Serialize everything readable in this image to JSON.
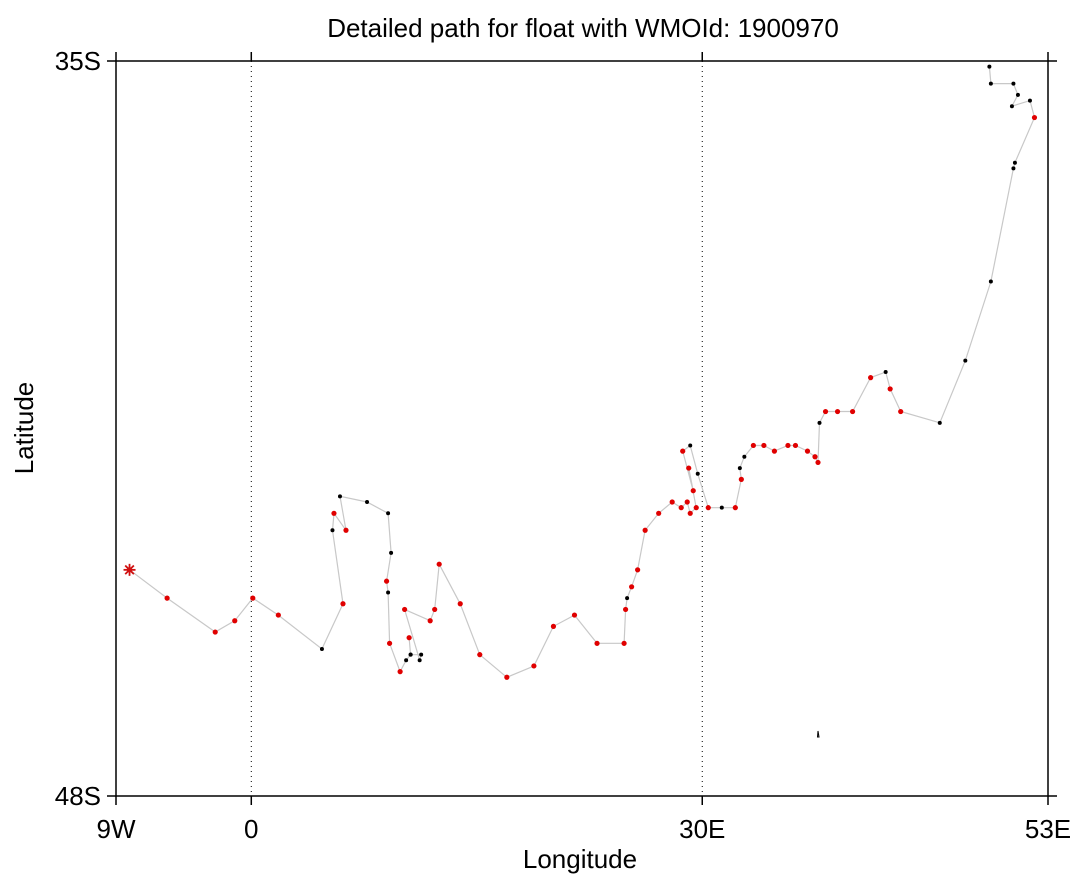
{
  "chart_data": {
    "type": "scatter",
    "title": "Detailed path for float with WMOId: 1900970",
    "xlabel": "Longitude",
    "ylabel": "Latitude",
    "xlim": [
      -9,
      53
    ],
    "ylim": [
      -48,
      -35
    ],
    "x_ticks": [
      {
        "value": -9,
        "label": "9W"
      },
      {
        "value": 0,
        "label": "0"
      },
      {
        "value": 30,
        "label": "30E"
      },
      {
        "value": 53,
        "label": "53E"
      }
    ],
    "y_ticks": [
      {
        "value": -35,
        "label": "35S"
      },
      {
        "value": -48,
        "label": "48S"
      }
    ],
    "vertical_reference_lines": [
      0,
      30
    ],
    "colors": {
      "path": "#c8c8c8",
      "red_points": "#e00000",
      "black_points": "#000000",
      "start_marker": "#d01010"
    },
    "start_marker": {
      "lon": -8.1,
      "lat": -44.0,
      "symbol": "asterisk"
    },
    "track": [
      {
        "lon": -8.1,
        "lat": -44.0,
        "c": "r"
      },
      {
        "lon": -5.6,
        "lat": -44.5,
        "c": "r"
      },
      {
        "lon": -2.4,
        "lat": -45.1,
        "c": "r"
      },
      {
        "lon": -1.1,
        "lat": -44.9,
        "c": "r"
      },
      {
        "lon": 0.1,
        "lat": -44.5,
        "c": "r"
      },
      {
        "lon": 1.8,
        "lat": -44.8,
        "c": "r"
      },
      {
        "lon": 4.7,
        "lat": -45.4,
        "c": "k"
      },
      {
        "lon": 6.1,
        "lat": -44.6,
        "c": "r"
      },
      {
        "lon": 5.4,
        "lat": -43.3,
        "c": "k"
      },
      {
        "lon": 5.5,
        "lat": -43.0,
        "c": "r"
      },
      {
        "lon": 6.3,
        "lat": -43.3,
        "c": "r"
      },
      {
        "lon": 5.9,
        "lat": -42.7,
        "c": "k"
      },
      {
        "lon": 7.7,
        "lat": -42.8,
        "c": "k"
      },
      {
        "lon": 9.1,
        "lat": -43.0,
        "c": "k"
      },
      {
        "lon": 9.3,
        "lat": -43.7,
        "c": "k"
      },
      {
        "lon": 9.0,
        "lat": -44.2,
        "c": "r"
      },
      {
        "lon": 9.1,
        "lat": -44.4,
        "c": "k"
      },
      {
        "lon": 9.2,
        "lat": -45.3,
        "c": "r"
      },
      {
        "lon": 9.9,
        "lat": -45.8,
        "c": "r"
      },
      {
        "lon": 10.3,
        "lat": -45.6,
        "c": "k"
      },
      {
        "lon": 10.6,
        "lat": -45.5,
        "c": "k"
      },
      {
        "lon": 10.5,
        "lat": -45.2,
        "c": "r"
      },
      {
        "lon": 10.6,
        "lat": -45.5,
        "c": "k"
      },
      {
        "lon": 11.3,
        "lat": -45.5,
        "c": "k"
      },
      {
        "lon": 11.2,
        "lat": -45.6,
        "c": "k"
      },
      {
        "lon": 10.2,
        "lat": -44.7,
        "c": "r"
      },
      {
        "lon": 11.9,
        "lat": -44.9,
        "c": "r"
      },
      {
        "lon": 12.2,
        "lat": -44.7,
        "c": "r"
      },
      {
        "lon": 12.5,
        "lat": -43.9,
        "c": "r"
      },
      {
        "lon": 13.9,
        "lat": -44.6,
        "c": "r"
      },
      {
        "lon": 15.2,
        "lat": -45.5,
        "c": "r"
      },
      {
        "lon": 17.0,
        "lat": -45.9,
        "c": "r"
      },
      {
        "lon": 18.8,
        "lat": -45.7,
        "c": "r"
      },
      {
        "lon": 20.1,
        "lat": -45.0,
        "c": "r"
      },
      {
        "lon": 21.5,
        "lat": -44.8,
        "c": "r"
      },
      {
        "lon": 23.0,
        "lat": -45.3,
        "c": "r"
      },
      {
        "lon": 24.8,
        "lat": -45.3,
        "c": "r"
      },
      {
        "lon": 24.9,
        "lat": -44.7,
        "c": "r"
      },
      {
        "lon": 25.0,
        "lat": -44.5,
        "c": "k"
      },
      {
        "lon": 25.3,
        "lat": -44.3,
        "c": "r"
      },
      {
        "lon": 25.7,
        "lat": -44.0,
        "c": "r"
      },
      {
        "lon": 26.2,
        "lat": -43.3,
        "c": "r"
      },
      {
        "lon": 27.1,
        "lat": -43.0,
        "c": "r"
      },
      {
        "lon": 28.0,
        "lat": -42.8,
        "c": "r"
      },
      {
        "lon": 28.6,
        "lat": -42.9,
        "c": "r"
      },
      {
        "lon": 29.0,
        "lat": -42.8,
        "c": "r"
      },
      {
        "lon": 29.2,
        "lat": -43.0,
        "c": "r"
      },
      {
        "lon": 29.6,
        "lat": -42.9,
        "c": "r"
      },
      {
        "lon": 29.1,
        "lat": -42.2,
        "c": "r"
      },
      {
        "lon": 29.4,
        "lat": -42.6,
        "c": "r"
      },
      {
        "lon": 28.7,
        "lat": -41.9,
        "c": "r"
      },
      {
        "lon": 29.2,
        "lat": -41.8,
        "c": "k"
      },
      {
        "lon": 29.7,
        "lat": -42.3,
        "c": "k"
      },
      {
        "lon": 30.4,
        "lat": -42.9,
        "c": "r"
      },
      {
        "lon": 31.3,
        "lat": -42.9,
        "c": "k"
      },
      {
        "lon": 32.2,
        "lat": -42.9,
        "c": "r"
      },
      {
        "lon": 32.6,
        "lat": -42.4,
        "c": "r"
      },
      {
        "lon": 32.5,
        "lat": -42.2,
        "c": "k"
      },
      {
        "lon": 32.8,
        "lat": -42.0,
        "c": "k"
      },
      {
        "lon": 33.4,
        "lat": -41.8,
        "c": "r"
      },
      {
        "lon": 34.1,
        "lat": -41.8,
        "c": "r"
      },
      {
        "lon": 34.8,
        "lat": -41.9,
        "c": "r"
      },
      {
        "lon": 35.7,
        "lat": -41.8,
        "c": "r"
      },
      {
        "lon": 36.2,
        "lat": -41.8,
        "c": "r"
      },
      {
        "lon": 37.0,
        "lat": -41.9,
        "c": "r"
      },
      {
        "lon": 37.5,
        "lat": -42.0,
        "c": "r"
      },
      {
        "lon": 37.7,
        "lat": -42.1,
        "c": "r"
      },
      {
        "lon": 37.8,
        "lat": -41.4,
        "c": "k"
      },
      {
        "lon": 38.2,
        "lat": -41.2,
        "c": "r"
      },
      {
        "lon": 39.0,
        "lat": -41.2,
        "c": "r"
      },
      {
        "lon": 40.0,
        "lat": -41.2,
        "c": "r"
      },
      {
        "lon": 41.2,
        "lat": -40.6,
        "c": "r"
      },
      {
        "lon": 42.2,
        "lat": -40.5,
        "c": "k"
      },
      {
        "lon": 42.5,
        "lat": -40.8,
        "c": "r"
      },
      {
        "lon": 43.2,
        "lat": -41.2,
        "c": "r"
      },
      {
        "lon": 45.8,
        "lat": -41.4,
        "c": "k"
      },
      {
        "lon": 47.5,
        "lat": -40.3,
        "c": "k"
      },
      {
        "lon": 49.2,
        "lat": -38.9,
        "c": "k"
      },
      {
        "lon": 50.7,
        "lat": -36.9,
        "c": "k"
      },
      {
        "lon": 50.8,
        "lat": -36.8,
        "c": "k"
      },
      {
        "lon": 52.1,
        "lat": -36.0,
        "c": "r"
      },
      {
        "lon": 51.8,
        "lat": -35.7,
        "c": "k"
      },
      {
        "lon": 50.6,
        "lat": -35.8,
        "c": "k"
      },
      {
        "lon": 51.0,
        "lat": -35.6,
        "c": "k"
      },
      {
        "lon": 50.7,
        "lat": -35.4,
        "c": "k"
      },
      {
        "lon": 49.2,
        "lat": -35.4,
        "c": "k"
      },
      {
        "lon": 49.1,
        "lat": -35.1,
        "c": "k"
      }
    ]
  }
}
